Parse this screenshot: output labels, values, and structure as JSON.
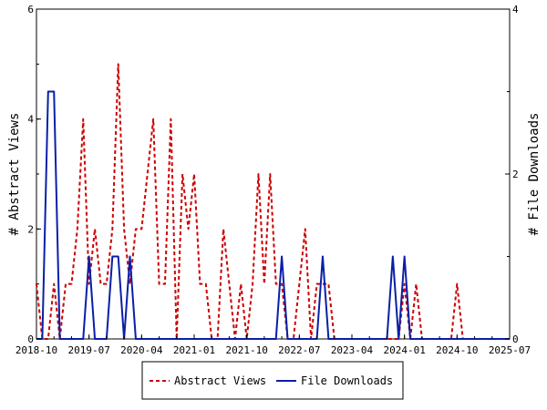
{
  "chart_data": {
    "type": "line",
    "x_tick_labels": [
      "2018-10",
      "2019-07",
      "2020-04",
      "2021-01",
      "2021-10",
      "2022-07",
      "2023-04",
      "2024-01",
      "2024-10",
      "2025-07"
    ],
    "x_range": [
      "2018-10",
      "2025-07"
    ],
    "left_axis": {
      "label": "# Abstract Views",
      "range": [
        0,
        6
      ],
      "ticks": [
        "0",
        "2",
        "4",
        "6"
      ]
    },
    "right_axis": {
      "label": "# File Downloads",
      "range": [
        0,
        4
      ],
      "ticks": [
        "0",
        "2",
        "4"
      ]
    },
    "legend_placement": "bottom-center",
    "grid": false,
    "series": [
      {
        "name": "Abstract Views",
        "axis": "left",
        "color": "#cc0000",
        "style": "dashed",
        "x": [
          "2018-10",
          "2018-11",
          "2018-12",
          "2019-01",
          "2019-02",
          "2019-03",
          "2019-04",
          "2019-05",
          "2019-06",
          "2019-07",
          "2019-08",
          "2019-09",
          "2019-10",
          "2019-11",
          "2019-12",
          "2020-01",
          "2020-02",
          "2020-03",
          "2020-04",
          "2020-05",
          "2020-06",
          "2020-07",
          "2020-08",
          "2020-09",
          "2020-10",
          "2020-11",
          "2020-12",
          "2021-01",
          "2021-02",
          "2021-03",
          "2021-04",
          "2021-05",
          "2021-06",
          "2021-07",
          "2021-08",
          "2021-09",
          "2021-10",
          "2021-11",
          "2021-12",
          "2022-01",
          "2022-02",
          "2022-03",
          "2022-04",
          "2022-05",
          "2022-06",
          "2022-07",
          "2022-08",
          "2022-09",
          "2022-10",
          "2022-11",
          "2022-12",
          "2023-01",
          "2023-02",
          "2023-03",
          "2023-04",
          "2023-05",
          "2023-06",
          "2023-07",
          "2023-08",
          "2023-09",
          "2023-10",
          "2023-11",
          "2023-12",
          "2024-01",
          "2024-02",
          "2024-03",
          "2024-04",
          "2024-05",
          "2024-06",
          "2024-07",
          "2024-08",
          "2024-09",
          "2024-10",
          "2024-11",
          "2024-12",
          "2025-01",
          "2025-02",
          "2025-03",
          "2025-04",
          "2025-05",
          "2025-06",
          "2025-07"
        ],
        "values": [
          1,
          0,
          0,
          1,
          0,
          1,
          1,
          2,
          4,
          1,
          2,
          1,
          1,
          2,
          5,
          2,
          1,
          2,
          2,
          3,
          4,
          1,
          1,
          4,
          0,
          3,
          2,
          3,
          1,
          1,
          0,
          0,
          2,
          1,
          0,
          1,
          0,
          1,
          3,
          1,
          3,
          1,
          1,
          0,
          0,
          1,
          2,
          0,
          1,
          1,
          1,
          0,
          0,
          0,
          0,
          0,
          0,
          0,
          0,
          0,
          0,
          0,
          0,
          1,
          0,
          1,
          0,
          0,
          0,
          0,
          0,
          0,
          1,
          0,
          0,
          0,
          0,
          0,
          0,
          0,
          0,
          0
        ]
      },
      {
        "name": "File Downloads",
        "axis": "right",
        "color": "#0a1fa8",
        "style": "solid",
        "x": [
          "2018-10",
          "2018-11",
          "2018-12",
          "2019-01",
          "2019-02",
          "2019-03",
          "2019-04",
          "2019-05",
          "2019-06",
          "2019-07",
          "2019-08",
          "2019-09",
          "2019-10",
          "2019-11",
          "2019-12",
          "2020-01",
          "2020-02",
          "2020-03",
          "2020-04",
          "2020-05",
          "2020-06",
          "2020-07",
          "2020-08",
          "2020-09",
          "2020-10",
          "2020-11",
          "2020-12",
          "2021-01",
          "2021-02",
          "2021-03",
          "2021-04",
          "2021-05",
          "2021-06",
          "2021-07",
          "2021-08",
          "2021-09",
          "2021-10",
          "2021-11",
          "2021-12",
          "2022-01",
          "2022-02",
          "2022-03",
          "2022-04",
          "2022-05",
          "2022-06",
          "2022-07",
          "2022-08",
          "2022-09",
          "2022-10",
          "2022-11",
          "2022-12",
          "2023-01",
          "2023-02",
          "2023-03",
          "2023-04",
          "2023-05",
          "2023-06",
          "2023-07",
          "2023-08",
          "2023-09",
          "2023-10",
          "2023-11",
          "2023-12",
          "2024-01",
          "2024-02",
          "2024-03",
          "2024-04",
          "2024-05",
          "2024-06",
          "2024-07",
          "2024-08",
          "2024-09",
          "2024-10",
          "2024-11",
          "2024-12",
          "2025-01",
          "2025-02",
          "2025-03",
          "2025-04",
          "2025-05",
          "2025-06",
          "2025-07"
        ],
        "values": [
          0,
          0,
          3,
          3,
          0,
          0,
          0,
          0,
          0,
          1,
          0,
          0,
          0,
          1,
          1,
          0,
          1,
          0,
          0,
          0,
          0,
          0,
          0,
          0,
          0,
          0,
          0,
          0,
          0,
          0,
          0,
          0,
          0,
          0,
          0,
          0,
          0,
          0,
          0,
          0,
          0,
          0,
          1,
          0,
          0,
          0,
          0,
          0,
          0,
          1,
          0,
          0,
          0,
          0,
          0,
          0,
          0,
          0,
          0,
          0,
          0,
          1,
          0,
          1,
          0,
          0,
          0,
          0,
          0,
          0,
          0,
          0,
          0,
          0,
          0,
          0,
          0,
          0,
          0,
          0,
          0,
          0
        ]
      }
    ]
  }
}
